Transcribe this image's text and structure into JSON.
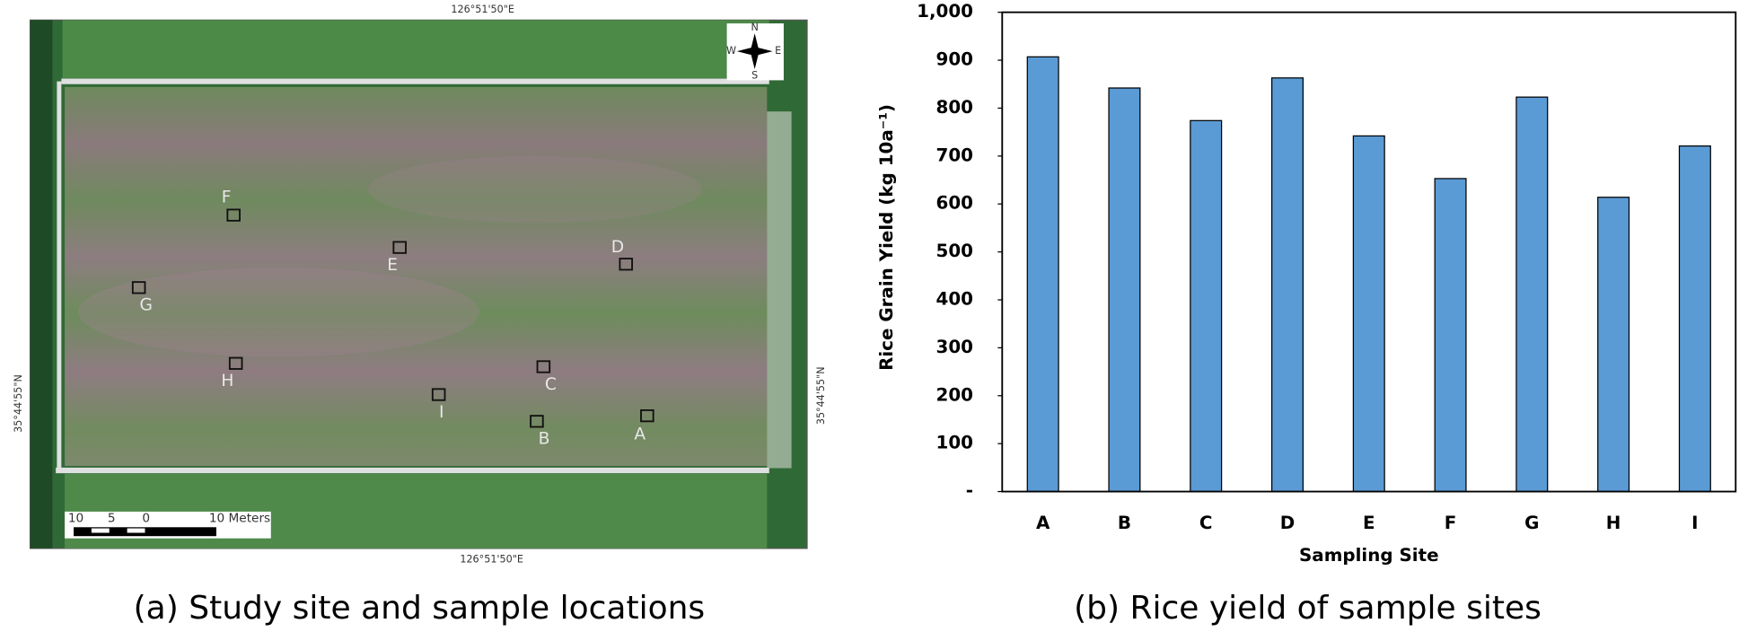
{
  "map": {
    "top_coordinate": "126°51'50\"E",
    "bottom_coordinate": "126°51'50\"E",
    "left_coordinate": "35°44'55\"N",
    "right_coordinate": "35°44'55\"N",
    "compass": {
      "n": "N",
      "s": "S",
      "e": "E",
      "w": "W"
    },
    "scale_bar": {
      "left": "10",
      "mid": "5",
      "zero": "0",
      "right": "10 Meters"
    },
    "sites": [
      {
        "label": "A"
      },
      {
        "label": "B"
      },
      {
        "label": "C"
      },
      {
        "label": "D"
      },
      {
        "label": "E"
      },
      {
        "label": "F"
      },
      {
        "label": "G"
      },
      {
        "label": "H"
      },
      {
        "label": "I"
      }
    ],
    "caption": "(a) Study site and sample locations"
  },
  "chart_data": {
    "type": "bar",
    "caption": "(b) Rice yield of sample sites",
    "x_label": "Sampling Site",
    "y_label": "Rice Grain Yield (kg 10a⁻¹)",
    "categories": [
      "A",
      "B",
      "C",
      "D",
      "E",
      "F",
      "G",
      "H",
      "I"
    ],
    "values": [
      907,
      842,
      774,
      863,
      742,
      653,
      823,
      614,
      721
    ],
    "color": "#5b9bd5",
    "ylim": [
      0,
      1000
    ],
    "yticks": [
      {
        "value": 0,
        "label": "-"
      },
      100,
      200,
      300,
      400,
      500,
      600,
      700,
      800,
      900,
      {
        "value": 1000,
        "label": "1,000"
      }
    ],
    "grid": false
  }
}
